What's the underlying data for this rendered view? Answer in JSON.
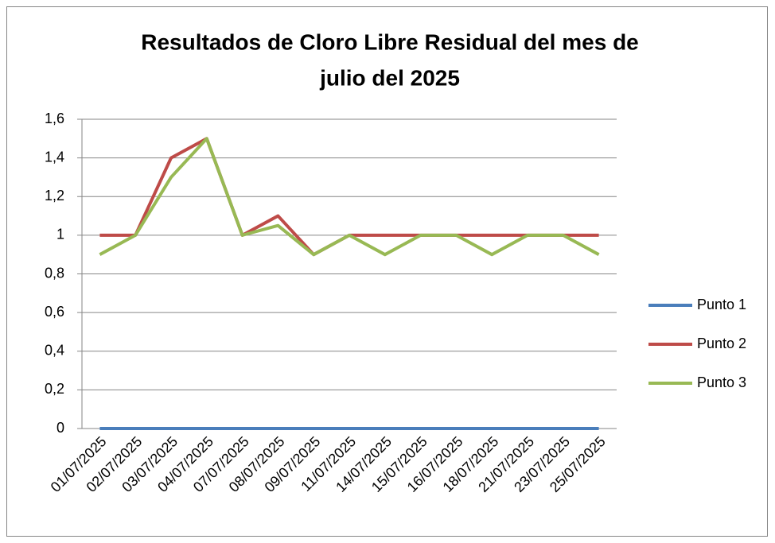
{
  "chart_data": {
    "type": "line",
    "title_lines": [
      "Resultados de Cloro Libre Residual del mes de",
      "julio del 2025"
    ],
    "categories": [
      "01/07/2025",
      "02/07/2025",
      "03/07/2025",
      "04/07/2025",
      "07/07/2025",
      "08/07/2025",
      "09/07/2025",
      "11/07/2025",
      "14/07/2025",
      "15/07/2025",
      "16/07/2025",
      "18/07/2025",
      "21/07/2025",
      "23/07/2025",
      "25/07/2025"
    ],
    "series": [
      {
        "name": "Punto 1",
        "color": "#4a7ebb",
        "values": [
          0,
          0,
          0,
          0,
          0,
          0,
          0,
          0,
          0,
          0,
          0,
          0,
          0,
          0,
          0
        ]
      },
      {
        "name": "Punto 2",
        "color": "#be4b48",
        "values": [
          1,
          1,
          1.4,
          1.5,
          1,
          1.1,
          0.9,
          1,
          1,
          1,
          1,
          1,
          1,
          1,
          1
        ]
      },
      {
        "name": "Punto 3",
        "color": "#98b954",
        "values": [
          0.9,
          1,
          1.3,
          1.5,
          1,
          1.05,
          0.9,
          1,
          0.9,
          1,
          1,
          0.9,
          1,
          1,
          0.9
        ]
      }
    ],
    "ylim": [
      0,
      1.6
    ],
    "yticks": [
      0,
      {
        "value": 0.2,
        "label": "0,2"
      },
      {
        "value": 0.4,
        "label": "0,4"
      },
      {
        "value": 0.6,
        "label": "0,6"
      },
      {
        "value": 0.8,
        "label": "0,8"
      },
      1,
      {
        "value": 1.2,
        "label": "1,2"
      },
      {
        "value": 1.4,
        "label": "1,4"
      },
      {
        "value": 1.6,
        "label": "1,6"
      }
    ],
    "grid": true,
    "legend": "right"
  }
}
